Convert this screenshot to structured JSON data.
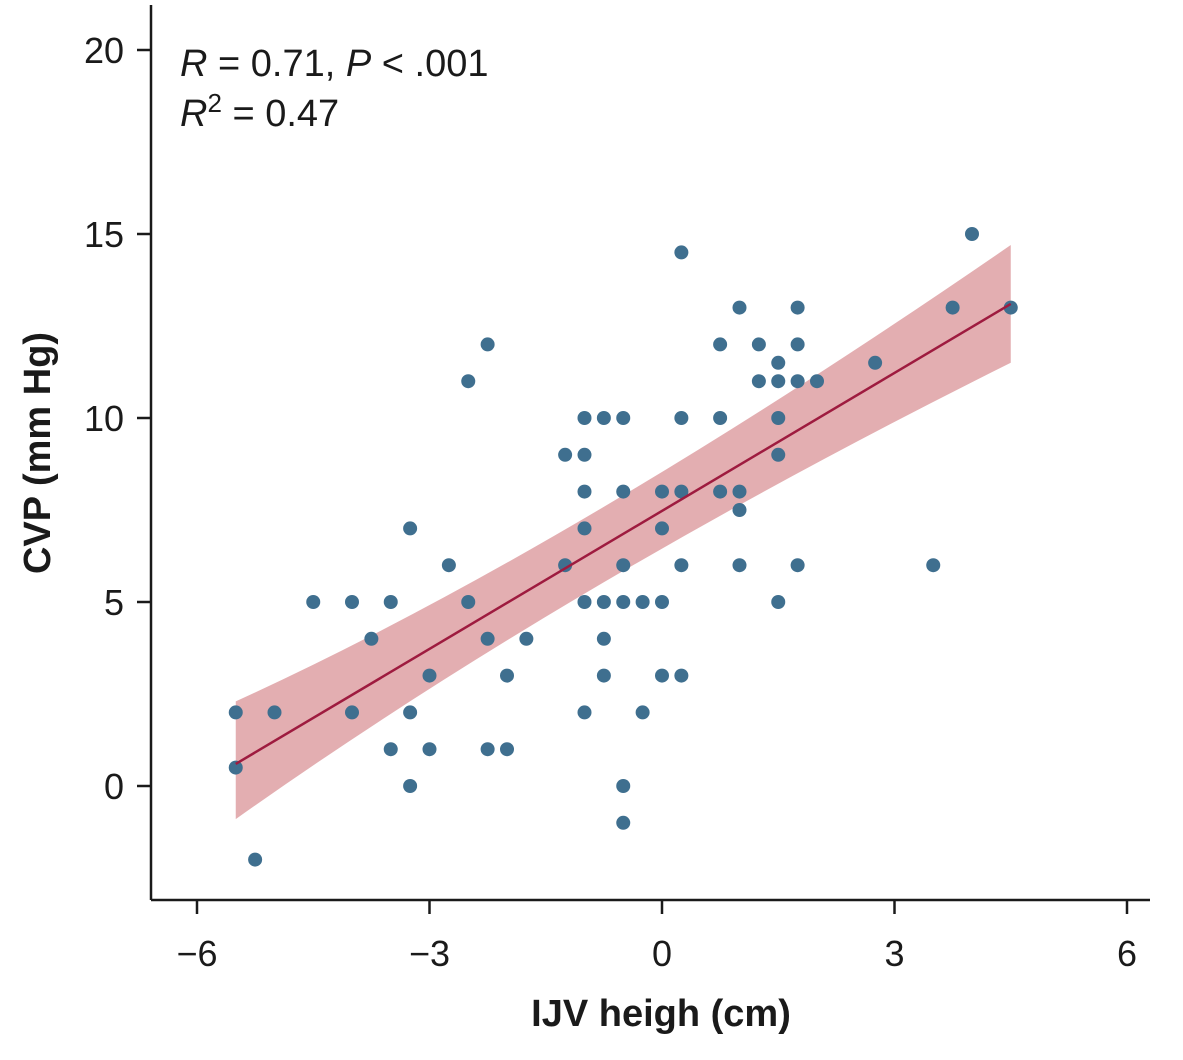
{
  "chart_data": {
    "type": "scatter",
    "xlabel": "IJV heigh (cm)",
    "ylabel": "CVP (mm Hg)",
    "xlim": [
      -6.6,
      6.3
    ],
    "ylim": [
      -3.1,
      21
    ],
    "xticks": [
      -6,
      -3,
      0,
      3,
      6
    ],
    "xtick_labels": [
      "−6",
      "−3",
      "0",
      "3",
      "6"
    ],
    "yticks": [
      0,
      5,
      10,
      15,
      20
    ],
    "ytick_labels": [
      "0",
      "5",
      "10",
      "15",
      "20"
    ],
    "grid": false,
    "annotation": {
      "line1_r": "R",
      "line1_r_value": " = 0.71, ",
      "line1_p": "P",
      "line1_p_value": " < .001",
      "line2_r": "R",
      "line2_sup": "2",
      "line2_value": " = 0.47"
    },
    "regression": {
      "x": [
        -5.5,
        4.5
      ],
      "y": [
        0.6,
        13.1
      ],
      "ci_upper": [
        2.3,
        14.7
      ],
      "ci_lower": [
        -0.9,
        11.5
      ],
      "line_color": "#9e1b3f",
      "band_color": "#d88f93"
    },
    "point_color": "#3f6f8f",
    "points": [
      [
        -5.5,
        2
      ],
      [
        -5.5,
        0.5
      ],
      [
        -5.25,
        -2
      ],
      [
        -5.0,
        2
      ],
      [
        -4.5,
        5
      ],
      [
        -4.0,
        5
      ],
      [
        -4.0,
        2
      ],
      [
        -3.75,
        4
      ],
      [
        -3.5,
        5
      ],
      [
        -3.5,
        1
      ],
      [
        -3.25,
        7
      ],
      [
        -3.25,
        2
      ],
      [
        -3.25,
        0
      ],
      [
        -3.0,
        3
      ],
      [
        -3.0,
        1
      ],
      [
        -2.75,
        6
      ],
      [
        -2.5,
        11
      ],
      [
        -2.5,
        5
      ],
      [
        -2.25,
        12
      ],
      [
        -2.25,
        4
      ],
      [
        -2.25,
        1
      ],
      [
        -2.0,
        3
      ],
      [
        -2.0,
        1
      ],
      [
        -1.75,
        4
      ],
      [
        -1.25,
        9
      ],
      [
        -1.25,
        6
      ],
      [
        -1.0,
        10
      ],
      [
        -1.0,
        9
      ],
      [
        -1.0,
        8
      ],
      [
        -1.0,
        7
      ],
      [
        -1.0,
        5
      ],
      [
        -1.0,
        2
      ],
      [
        -0.75,
        10
      ],
      [
        -0.75,
        5
      ],
      [
        -0.75,
        4
      ],
      [
        -0.75,
        3
      ],
      [
        -0.5,
        10
      ],
      [
        -0.5,
        8
      ],
      [
        -0.5,
        6
      ],
      [
        -0.5,
        5
      ],
      [
        -0.5,
        0
      ],
      [
        -0.5,
        -1
      ],
      [
        -0.25,
        5
      ],
      [
        -0.25,
        2
      ],
      [
        0.0,
        8
      ],
      [
        0.0,
        7
      ],
      [
        0.0,
        5
      ],
      [
        0.0,
        3
      ],
      [
        0.25,
        14.5
      ],
      [
        0.25,
        10
      ],
      [
        0.25,
        8
      ],
      [
        0.25,
        6
      ],
      [
        0.25,
        3
      ],
      [
        0.75,
        12
      ],
      [
        0.75,
        10
      ],
      [
        0.75,
        8
      ],
      [
        1.0,
        13
      ],
      [
        1.0,
        8
      ],
      [
        1.0,
        7.5
      ],
      [
        1.0,
        6
      ],
      [
        1.25,
        12
      ],
      [
        1.25,
        11
      ],
      [
        1.5,
        11.5
      ],
      [
        1.5,
        11
      ],
      [
        1.5,
        10
      ],
      [
        1.5,
        9
      ],
      [
        1.5,
        5
      ],
      [
        1.75,
        13
      ],
      [
        1.75,
        12
      ],
      [
        1.75,
        11
      ],
      [
        1.75,
        6
      ],
      [
        2.0,
        11
      ],
      [
        2.75,
        11.5
      ],
      [
        3.5,
        6
      ],
      [
        3.75,
        13
      ],
      [
        4.0,
        15
      ],
      [
        4.5,
        13
      ]
    ]
  }
}
